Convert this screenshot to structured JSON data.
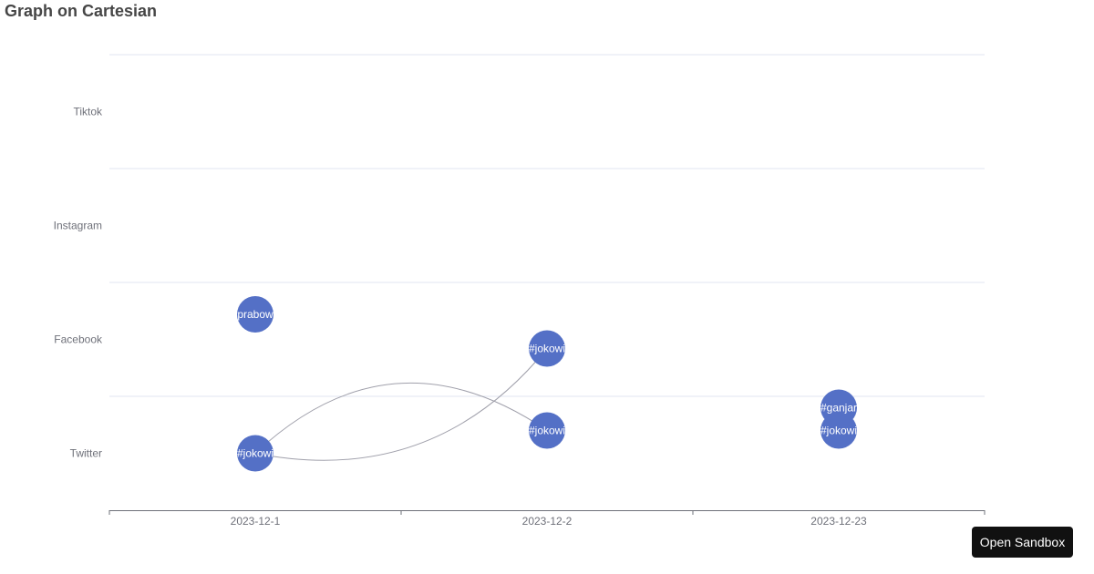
{
  "page": {
    "title": "Graph on Cartesian",
    "open_sandbox_label": "Open Sandbox"
  },
  "colors": {
    "node": "#5470c6",
    "edge": "#a0a0ab",
    "grid": "#e0e6f1",
    "axis": "#6e7079",
    "button_bg": "#111111"
  },
  "chart_data": {
    "type": "graph",
    "title": "Graph on Cartesian",
    "coordinate_system": "cartesian",
    "x_axis": {
      "type": "category",
      "categories": [
        "2023-12-1",
        "2023-12-2",
        "2023-12-23"
      ]
    },
    "y_axis": {
      "type": "category",
      "categories": [
        "Twitter",
        "Facebook",
        "Instagram",
        "Tiktok"
      ]
    },
    "grid": true,
    "nodes": [
      {
        "id": "n1",
        "label": "#jokowi",
        "x": "2023-12-1",
        "y": "Twitter",
        "offset": 0
      },
      {
        "id": "n2",
        "label": "#prabowo",
        "x": "2023-12-1",
        "y": "Facebook",
        "offset": 0.22
      },
      {
        "id": "n3",
        "label": "#jokowi",
        "x": "2023-12-2",
        "y": "Facebook",
        "offset": -0.08
      },
      {
        "id": "n4",
        "label": "#jokowi",
        "x": "2023-12-2",
        "y": "Twitter",
        "offset": 0.2
      },
      {
        "id": "n5",
        "label": "#ganjar",
        "x": "2023-12-23",
        "y": "Twitter",
        "offset": 0.4
      },
      {
        "id": "n6",
        "label": "#jokowi",
        "x": "2023-12-23",
        "y": "Twitter",
        "offset": 0.2
      }
    ],
    "edges": [
      {
        "source": "n1",
        "target": "n3",
        "curveness": 0.15
      },
      {
        "source": "n1",
        "target": "n4",
        "curveness": -0.2
      }
    ]
  }
}
